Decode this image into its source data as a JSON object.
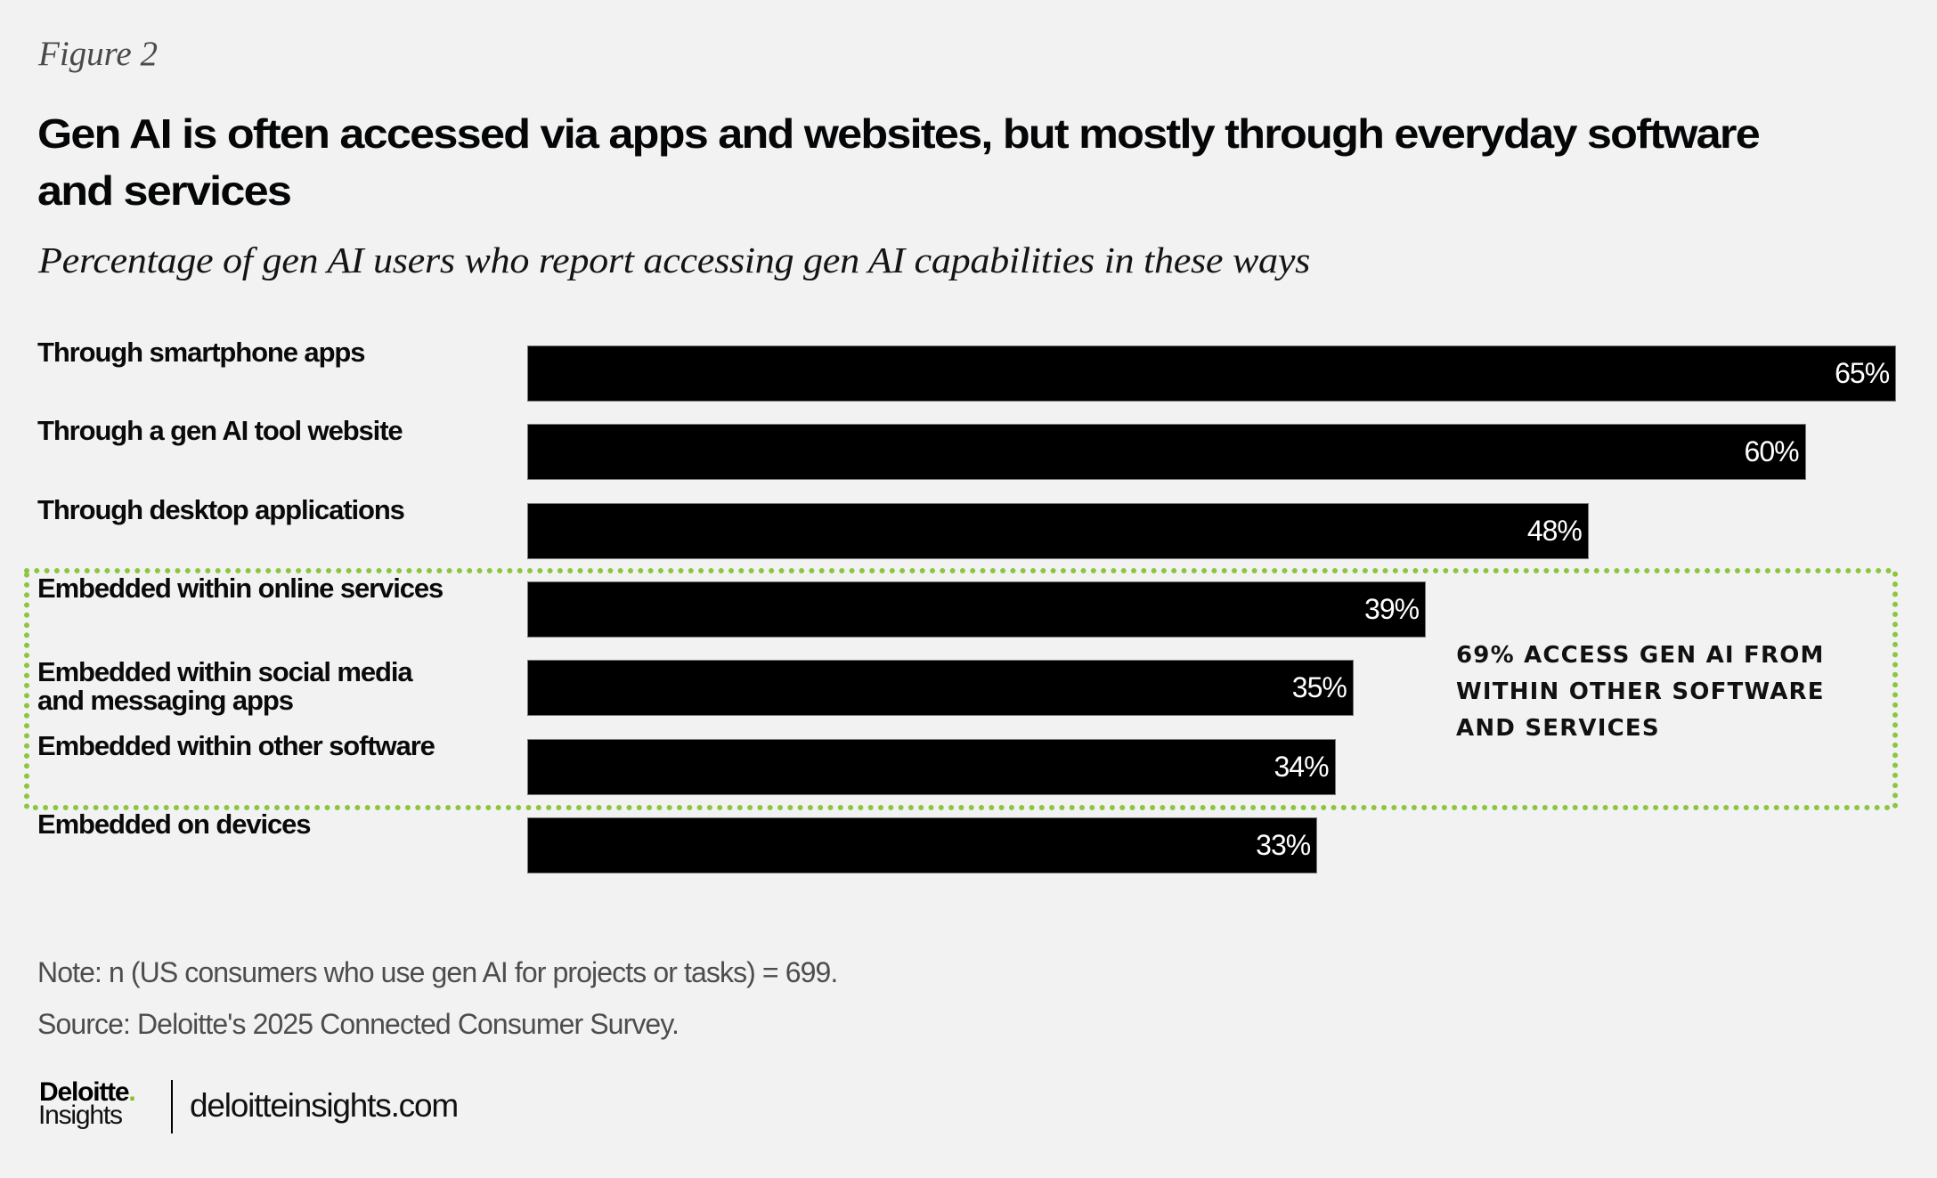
{
  "figure_label": "Figure 2",
  "colors": {
    "background": "#f2f2f2",
    "bar": "#000000",
    "bar_label": "#ffffff",
    "highlight": "#8cc63f",
    "brand_dot": "#86bc25"
  },
  "chart_data": {
    "type": "bar",
    "orientation": "horizontal",
    "title": "Gen AI is often accessed via apps and websites, but mostly through everyday software and services",
    "title_lines": [
      "Gen AI is often accessed via apps and websites, but mostly through everyday software",
      "and services"
    ],
    "subtitle": "Percentage of gen AI users who report accessing gen AI capabilities in these ways",
    "xlabel": "",
    "ylabel": "",
    "unit": "%",
    "grid": false,
    "categories": [
      "Through smartphone apps",
      "Through a gen AI tool website",
      "Through desktop applications",
      "Embedded within online services",
      "Embedded within social media and messaging apps",
      "Embedded within other software",
      "Embedded on devices"
    ],
    "category_lines": [
      [
        "Through smartphone apps"
      ],
      [
        "Through a gen AI tool website"
      ],
      [
        "Through desktop applications"
      ],
      [
        "Embedded within online services"
      ],
      [
        "Embedded within social media",
        "and messaging apps"
      ],
      [
        "Embedded within other software"
      ],
      [
        "Embedded on devices"
      ]
    ],
    "values": [
      65,
      60,
      48,
      39,
      35,
      34,
      33
    ],
    "data_labels": [
      "65%",
      "60%",
      "48%",
      "39%",
      "35%",
      "34%",
      "33%"
    ],
    "highlight": {
      "categories": [
        "Embedded within online services",
        "Embedded within social media and messaging apps",
        "Embedded within other software"
      ],
      "style": "dotted green outline",
      "annotation": "69% access gen AI from within other software and services",
      "annotation_lines": [
        "69% ACCESS GEN AI FROM",
        "WITHIN OTHER SOFTWARE",
        "AND SERVICES"
      ],
      "annotation_position": "right"
    }
  },
  "footer": {
    "note": "Note: n (US consumers who use gen AI for projects or tasks) = 699.",
    "source": "Source: Deloitte's 2025 Connected Consumer Survey.",
    "logo": {
      "brand": "Deloitte",
      "dot": ".",
      "sub": "Insights"
    },
    "url": "deloitteinsights.com"
  }
}
